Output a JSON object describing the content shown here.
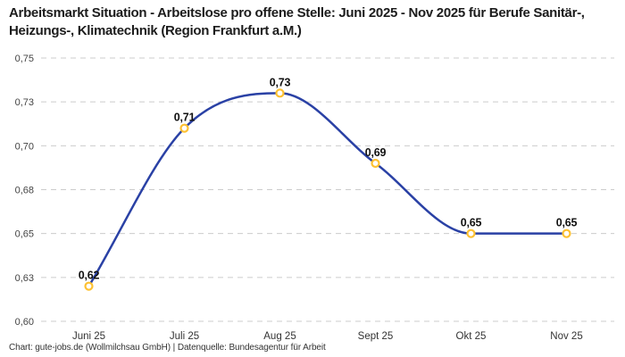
{
  "header": {
    "title": "Arbeitsmarkt Situation - Arbeitslose pro offene Stelle: Juni 2025 - Nov 2025 für Berufe Sanitär-, Heizungs-, Klimatechnik (Region Frankfurt a.M.)"
  },
  "footer": {
    "credit": "Chart: gute-jobs.de (Wollmilchsau GmbH) | Datenquelle: Bundesagentur für Arbeit"
  },
  "chart_data": {
    "type": "line",
    "title": "Arbeitsmarkt Situation - Arbeitslose pro offene Stelle: Juni 2025 - Nov 2025 für Berufe Sanitär-, Heizungs-, Klimatechnik (Region Frankfurt a.M.)",
    "categories": [
      "Juni 25",
      "Juli 25",
      "Aug 25",
      "Sept 25",
      "Okt 25",
      "Nov 25"
    ],
    "values": [
      0.62,
      0.71,
      0.73,
      0.69,
      0.65,
      0.65
    ],
    "point_labels": [
      "0,62",
      "0,71",
      "0,73",
      "0,69",
      "0,65",
      "0,65"
    ],
    "ylim": [
      0.6,
      0.75
    ],
    "yticks": [
      0.6,
      0.625,
      0.65,
      0.675,
      0.7,
      0.725,
      0.75
    ],
    "ytick_labels": [
      "0,60",
      "0,63",
      "0,65",
      "0,68",
      "0,70",
      "0,73",
      "0,75"
    ],
    "grid": "horizontal-dashed",
    "legend": "none",
    "smooth": true,
    "colors": {
      "line": "#2a41a5",
      "marker_ring": "#fdc132",
      "marker_fill": "#ffffff",
      "grid": "#cccccc"
    }
  }
}
